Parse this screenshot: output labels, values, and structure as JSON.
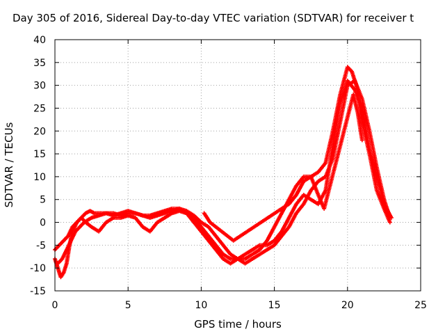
{
  "chart_data": {
    "type": "scatter",
    "title": "Day 305 of 2016, Sidereal Day-to-day VTEC variation (SDTVAR) for receiver t",
    "xlabel": "GPS time / hours",
    "ylabel": "SDTVAR / TECUs",
    "xlim": [
      0,
      25
    ],
    "ylim": [
      -15,
      40
    ],
    "xticks": [
      0,
      5,
      10,
      15,
      20,
      25
    ],
    "yticks": [
      -15,
      -10,
      -5,
      0,
      5,
      10,
      15,
      20,
      25,
      30,
      35,
      40
    ],
    "grid": true,
    "marker": "+",
    "color": "#ff0000",
    "series": [
      {
        "x": [
          0.0,
          0.2,
          0.4,
          0.6,
          0.8,
          1.0,
          1.2,
          1.5,
          1.8,
          2.1,
          2.4,
          2.7,
          3.0,
          3.5,
          4.0,
          4.5,
          5.0,
          5.5,
          6.0,
          6.5,
          7.0,
          7.5,
          8.0,
          8.5,
          9.0,
          9.5,
          10.0,
          10.5,
          11.0,
          11.5,
          12.0,
          12.5,
          13.0,
          13.5,
          14.0,
          14.5,
          15.0,
          15.5,
          16.0,
          16.5,
          17.0,
          17.5,
          18.0,
          18.5,
          19.0,
          19.5,
          20.0,
          20.3,
          20.6,
          21.0,
          21.5,
          22.0,
          22.5,
          22.9
        ],
        "y": [
          -8,
          -10,
          -12,
          -11,
          -9,
          -5,
          -2,
          0,
          1,
          2,
          2.5,
          2,
          2,
          2,
          1.5,
          2,
          2.5,
          2,
          1.5,
          1.5,
          2,
          2.5,
          3,
          3,
          2,
          1,
          -1,
          -3,
          -5,
          -7,
          -8,
          -8,
          -8,
          -7,
          -6,
          -4,
          -1,
          2,
          5,
          8,
          10,
          10,
          11,
          13,
          20,
          28,
          34,
          33,
          30,
          22,
          15,
          7,
          3,
          0
        ]
      },
      {
        "x": [
          0.0,
          0.3,
          0.6,
          0.9,
          1.2,
          1.5,
          1.8,
          2.1,
          2.5,
          3.0,
          3.5,
          4.0,
          4.5,
          5.0,
          5.5,
          6.0,
          6.5,
          7.0,
          7.5,
          8.0,
          8.5,
          9.0,
          9.5,
          10.0,
          10.5,
          11.0,
          11.5,
          12.0,
          12.5,
          13.0,
          13.5,
          14.0,
          14.5,
          15.0,
          15.5,
          16.0,
          16.5,
          17.0,
          17.5,
          18.0,
          18.5,
          19.0,
          19.5,
          20.0,
          20.5,
          21.0,
          21.5,
          22.0,
          22.5,
          23.0
        ],
        "y": [
          -6,
          -5,
          -4,
          -3,
          -1,
          0,
          1,
          0,
          -1,
          -2,
          0,
          1,
          1,
          1.5,
          1,
          -1,
          -2,
          0,
          1,
          2,
          2.5,
          2,
          0,
          -2,
          -4,
          -6,
          -8,
          -9,
          -8,
          -7,
          -6,
          -5,
          -5,
          -4,
          -2,
          1,
          4,
          6,
          5,
          4,
          7,
          17,
          26,
          31,
          29,
          25,
          16,
          10,
          4,
          1
        ]
      },
      {
        "x": [
          0.2,
          0.5,
          0.8,
          1.1,
          1.4,
          1.7,
          2.0,
          2.5,
          3.0,
          3.5,
          4.0,
          4.5,
          5.0,
          5.5,
          6.0,
          6.5,
          7.0,
          7.5,
          8.0,
          8.5,
          9.0,
          9.5,
          10.0,
          10.5,
          11.0,
          11.5,
          12.0,
          12.5,
          13.0,
          13.5,
          14.0,
          14.5,
          15.0,
          15.5,
          16.0,
          16.5,
          17.0,
          17.5,
          18.0,
          18.5,
          19.0,
          19.5,
          20.0,
          20.5,
          21.0,
          21.5,
          22.0,
          22.5,
          22.9
        ],
        "y": [
          -9,
          -8,
          -6,
          -4,
          -2,
          -1,
          0,
          1,
          1.5,
          2,
          2,
          1.5,
          2,
          2,
          1.5,
          1,
          1.5,
          2,
          2.5,
          3,
          2.5,
          1.5,
          0,
          -1,
          -3,
          -5,
          -7,
          -8,
          -9,
          -8,
          -7,
          -6,
          -5,
          -3,
          -1,
          2,
          4,
          7,
          9,
          10,
          14,
          22,
          30,
          31,
          27,
          20,
          12,
          5,
          1
        ]
      },
      {
        "x": [
          10.2,
          10.6,
          11.0,
          11.4,
          11.8,
          12.2,
          15.5,
          16.0,
          16.5,
          17.0,
          17.5,
          18.0,
          18.4,
          20.4,
          20.7,
          21.0
        ],
        "y": [
          2,
          0,
          -1,
          -2,
          -3,
          -4,
          3,
          4,
          6,
          9,
          10,
          6,
          3,
          28,
          24,
          18
        ]
      }
    ]
  }
}
